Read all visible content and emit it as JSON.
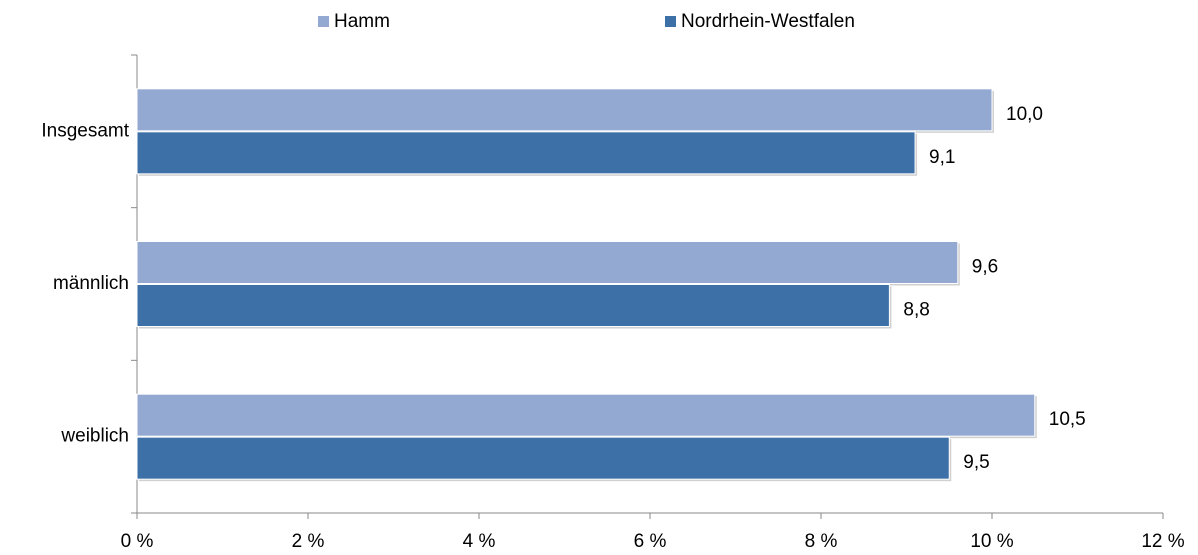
{
  "chart_data": {
    "type": "bar",
    "orientation": "horizontal",
    "categories": [
      "Insgesamt",
      "männlich",
      "weiblich"
    ],
    "series": [
      {
        "name": "Hamm",
        "color": "#93a9d1",
        "values": [
          10.0,
          9.6,
          10.5
        ],
        "value_labels": [
          "10,0",
          "9,6",
          "10,5"
        ]
      },
      {
        "name": "Nordrhein-Westfalen",
        "color": "#3e70a8",
        "values": [
          9.1,
          8.8,
          9.5
        ],
        "value_labels": [
          "9,1",
          "8,8",
          "9,5"
        ]
      }
    ],
    "xlim": [
      0,
      12
    ],
    "xticks": [
      {
        "value": 0,
        "label": "0 %"
      },
      {
        "value": 2,
        "label": "2 %"
      },
      {
        "value": 4,
        "label": "4 %"
      },
      {
        "value": 6,
        "label": "6 %"
      },
      {
        "value": 8,
        "label": "8 %"
      },
      {
        "value": 10,
        "label": "10 %"
      },
      {
        "value": 12,
        "label": "12 %"
      }
    ],
    "legend": "top"
  }
}
